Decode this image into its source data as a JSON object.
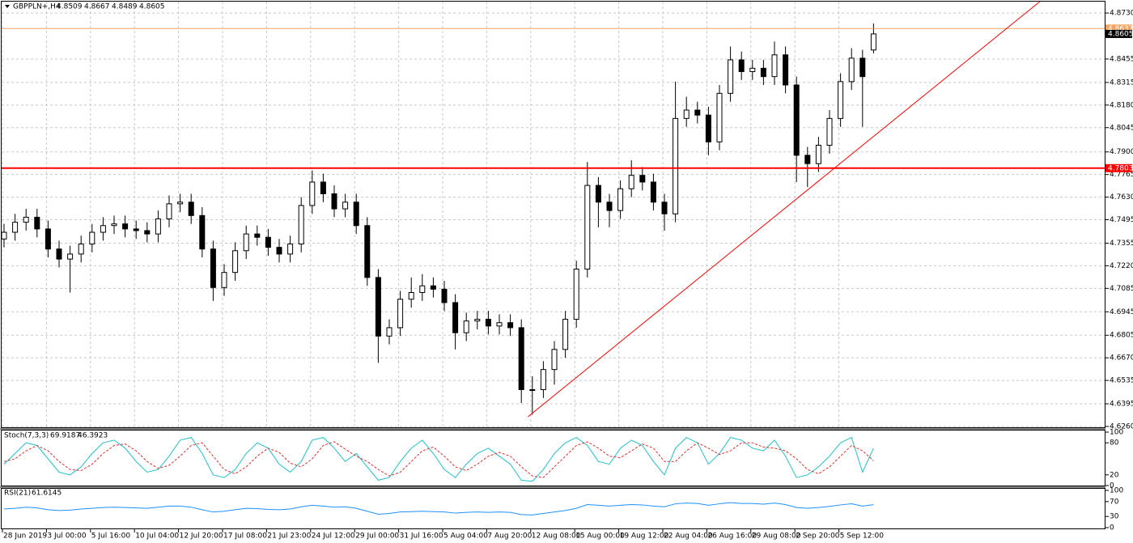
{
  "chart_data": [
    {
      "type": "candlestick",
      "title": "GBPPLN+,H4",
      "categories": [
        "28 Jun 2019",
        null,
        null,
        null,
        "3 Jul 00:00",
        null,
        null,
        null,
        "5 Jul 16:00",
        null,
        null,
        null,
        "10 Jul 04:00",
        null,
        null,
        null,
        "12 Jul 20:00",
        null,
        null,
        null,
        "17 Jul 08:00",
        null,
        null,
        null,
        "21 Jul 23:00",
        null,
        null,
        null,
        "24 Jul 12:00",
        null,
        null,
        null,
        "29 Jul 00:00",
        null,
        null,
        null,
        "31 Jul 16:00",
        null,
        null,
        null,
        "5 Aug 04:00",
        null,
        null,
        null,
        "7 Aug 20:00",
        null,
        null,
        null,
        "12 Aug 08:00",
        null,
        null,
        null,
        "15 Aug 00:00",
        null,
        null,
        null,
        "19 Aug 12:00",
        null,
        null,
        null,
        "22 Aug 04:00",
        null,
        null,
        null,
        "26 Aug 16:00",
        null,
        null,
        null,
        "29 Aug 08:00",
        null,
        null,
        null,
        "2 Sep 20:00",
        null,
        null,
        null,
        "5 Sep 12:00",
        null,
        null,
        null
      ],
      "open": [
        4.738,
        4.742,
        4.748,
        4.751,
        4.744,
        4.732,
        4.726,
        4.729,
        4.735,
        4.742,
        4.746,
        4.747,
        4.744,
        4.743,
        4.741,
        4.75,
        4.759,
        4.76,
        4.752,
        4.732,
        4.709,
        4.718,
        4.731,
        4.741,
        4.739,
        4.733,
        4.729,
        4.735,
        4.758,
        4.772,
        4.765,
        4.756,
        4.76,
        4.746,
        4.715,
        4.68,
        4.685,
        4.702,
        4.706,
        4.71,
        4.708,
        4.7,
        4.682,
        4.689,
        4.69,
        4.686,
        4.688,
        4.685,
        4.648,
        4.648,
        4.66,
        4.672,
        4.69,
        4.72,
        4.77,
        4.76,
        4.755,
        4.768,
        4.776,
        4.772,
        4.76,
        4.753,
        4.81,
        4.815,
        4.812,
        4.796,
        4.825,
        4.845,
        4.838,
        4.84,
        4.835,
        4.848,
        4.83,
        4.788,
        4.783,
        4.794,
        4.81,
        4.832,
        4.846,
        4.8509
      ],
      "high": [
        4.747,
        4.753,
        4.756,
        4.756,
        4.749,
        4.737,
        4.734,
        4.74,
        4.747,
        4.751,
        4.752,
        4.752,
        4.749,
        4.748,
        4.755,
        4.764,
        4.765,
        4.765,
        4.757,
        4.737,
        4.723,
        4.736,
        4.746,
        4.746,
        4.744,
        4.738,
        4.74,
        4.763,
        4.779,
        4.777,
        4.77,
        4.765,
        4.765,
        4.751,
        4.72,
        4.69,
        4.707,
        4.715,
        4.717,
        4.715,
        4.713,
        4.705,
        4.694,
        4.695,
        4.695,
        4.693,
        4.693,
        4.69,
        4.656,
        4.665,
        4.677,
        4.695,
        4.725,
        4.784,
        4.775,
        4.765,
        4.773,
        4.785,
        4.781,
        4.777,
        4.765,
        4.832,
        4.823,
        4.82,
        4.817,
        4.83,
        4.853,
        4.85,
        4.845,
        4.845,
        4.856,
        4.853,
        4.835,
        4.793,
        4.799,
        4.815,
        4.837,
        4.852,
        4.851,
        4.8667
      ],
      "low": [
        4.733,
        4.737,
        4.743,
        4.739,
        4.727,
        4.721,
        4.706,
        4.724,
        4.73,
        4.737,
        4.741,
        4.739,
        4.738,
        4.736,
        4.736,
        4.745,
        4.754,
        4.747,
        4.727,
        4.701,
        4.704,
        4.713,
        4.726,
        4.734,
        4.728,
        4.724,
        4.724,
        4.73,
        4.753,
        4.76,
        4.751,
        4.751,
        4.741,
        4.71,
        4.664,
        4.675,
        4.68,
        4.697,
        4.701,
        4.703,
        4.695,
        4.672,
        4.677,
        4.684,
        4.681,
        4.681,
        4.68,
        4.64,
        4.633,
        4.643,
        4.651,
        4.667,
        4.685,
        4.715,
        4.745,
        4.745,
        4.75,
        4.763,
        4.767,
        4.755,
        4.743,
        4.748,
        4.805,
        4.807,
        4.788,
        4.791,
        4.82,
        4.833,
        4.833,
        4.83,
        4.83,
        4.825,
        4.772,
        4.769,
        4.778,
        4.789,
        4.805,
        4.827,
        4.805,
        4.8489
      ],
      "close": [
        4.742,
        4.748,
        4.751,
        4.744,
        4.732,
        4.726,
        4.729,
        4.735,
        4.742,
        4.746,
        4.747,
        4.744,
        4.743,
        4.741,
        4.75,
        4.759,
        4.76,
        4.752,
        4.732,
        4.709,
        4.718,
        4.731,
        4.741,
        4.739,
        4.733,
        4.729,
        4.735,
        4.758,
        4.772,
        4.765,
        4.756,
        4.76,
        4.746,
        4.715,
        4.68,
        4.685,
        4.702,
        4.706,
        4.71,
        4.708,
        4.7,
        4.682,
        4.689,
        4.69,
        4.686,
        4.688,
        4.685,
        4.648,
        4.648,
        4.66,
        4.672,
        4.69,
        4.72,
        4.77,
        4.76,
        4.755,
        4.768,
        4.776,
        4.772,
        4.76,
        4.753,
        4.81,
        4.815,
        4.812,
        4.796,
        4.825,
        4.845,
        4.838,
        4.84,
        4.835,
        4.848,
        4.83,
        4.788,
        4.783,
        4.794,
        4.81,
        4.832,
        4.846,
        4.835,
        4.8605
      ],
      "ylim": [
        4.6255,
        4.8798
      ],
      "yticks": [
        {
          "value": 4.873,
          "label": "4.8730"
        },
        4.8455,
        4.8315,
        {
          "value": 4.818,
          "label": "4.8180"
        },
        4.8045,
        {
          "value": 4.79,
          "label": "4.7900"
        },
        4.7765,
        {
          "value": 4.763,
          "label": "4.7630"
        },
        4.7495,
        4.7355,
        {
          "value": 4.722,
          "label": "4.7220"
        },
        4.7085,
        4.6945,
        4.6805,
        {
          "value": 4.667,
          "label": "4.6670"
        },
        4.6535,
        4.6395,
        {
          "value": 4.626,
          "label": "4.6260"
        }
      ],
      "levels": [
        {
          "value": 4.8637,
          "color": "#f4a460",
          "width": 1
        },
        {
          "value": 4.7803,
          "color": "#ff0000",
          "width": 2
        }
      ],
      "trendline": {
        "x": [
          47.6,
          94.1
        ],
        "y": [
          4.6318,
          4.8798
        ],
        "color": "#ff0000"
      },
      "grid": true
    },
    {
      "type": "line",
      "title": "Stoch(7,3,3)",
      "ylim": [
        0,
        100
      ],
      "yticks": [
        0,
        20,
        80,
        100
      ],
      "series": [
        {
          "color": "#20c0c8",
          "dash": false,
          "values": [
            40,
            60,
            80,
            75,
            50,
            25,
            20,
            35,
            60,
            80,
            85,
            70,
            45,
            25,
            30,
            55,
            85,
            90,
            60,
            20,
            15,
            30,
            60,
            80,
            70,
            40,
            25,
            45,
            85,
            90,
            70,
            45,
            60,
            35,
            10,
            15,
            45,
            70,
            85,
            60,
            30,
            15,
            40,
            60,
            70,
            55,
            40,
            10,
            8,
            30,
            60,
            80,
            90,
            75,
            45,
            40,
            70,
            85,
            75,
            45,
            20,
            70,
            90,
            80,
            40,
            60,
            90,
            85,
            70,
            65,
            85,
            55,
            15,
            20,
            35,
            55,
            80,
            90,
            25,
            69.9187
          ]
        },
        {
          "color": "#e03030",
          "dash": true,
          "values": [
            45,
            50,
            65,
            75,
            65,
            45,
            30,
            28,
            40,
            60,
            75,
            78,
            65,
            45,
            32,
            38,
            55,
            75,
            80,
            55,
            30,
            22,
            35,
            55,
            70,
            62,
            42,
            35,
            50,
            75,
            82,
            68,
            55,
            45,
            30,
            18,
            25,
            45,
            65,
            72,
            55,
            35,
            28,
            40,
            55,
            62,
            55,
            35,
            18,
            15,
            35,
            55,
            75,
            82,
            70,
            55,
            52,
            65,
            78,
            70,
            45,
            45,
            65,
            80,
            70,
            58,
            65,
            80,
            80,
            72,
            70,
            65,
            50,
            30,
            22,
            35,
            55,
            75,
            65,
            46.3923
          ]
        }
      ]
    },
    {
      "type": "line",
      "title": "RSI(21)",
      "ylim": [
        0,
        100
      ],
      "yticks": [
        0,
        30,
        70,
        100
      ],
      "series": [
        {
          "color": "#1e90ff",
          "dash": false,
          "values": [
            50,
            52,
            55,
            53,
            48,
            46,
            47,
            50,
            52,
            54,
            55,
            54,
            53,
            52,
            55,
            58,
            58,
            55,
            48,
            42,
            44,
            48,
            52,
            51,
            49,
            48,
            50,
            56,
            60,
            58,
            55,
            56,
            52,
            44,
            36,
            38,
            42,
            43,
            44,
            43,
            42,
            39,
            41,
            42,
            41,
            42,
            41,
            35,
            34,
            38,
            42,
            46,
            52,
            62,
            60,
            58,
            60,
            62,
            61,
            58,
            56,
            64,
            66,
            65,
            60,
            64,
            67,
            65,
            65,
            63,
            66,
            62,
            54,
            52,
            54,
            57,
            61,
            64,
            58,
            61.6145
          ]
        }
      ]
    }
  ]
}
